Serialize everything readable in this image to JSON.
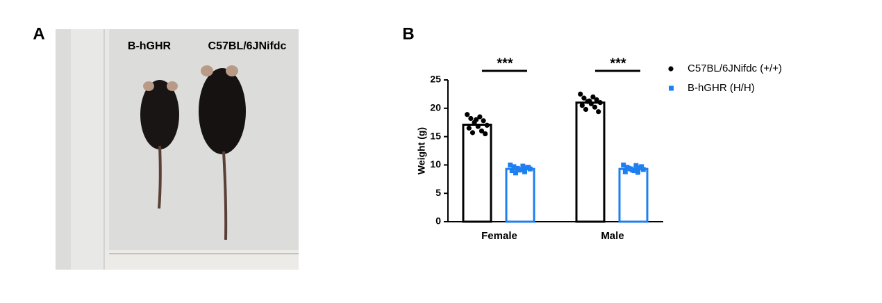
{
  "panel_labels": [
    "A",
    "B"
  ],
  "photo": {
    "labels": [
      "B-hGHR",
      "C57BL/6JNifdc"
    ]
  },
  "chart_data": {
    "type": "bar",
    "y_label": "Weight (g)",
    "categories": [
      "Female",
      "Male"
    ],
    "ylim": [
      0,
      25
    ],
    "yticks": [
      0,
      5,
      10,
      15,
      20,
      25
    ],
    "legend": "top-right",
    "series": [
      {
        "name": "C57BL/6JNifdc (+/+)",
        "color": "#000000",
        "marker": "circle",
        "values": [
          17.1,
          21.0
        ],
        "points": [
          [
            18.9,
            18.5,
            18.2,
            17.8,
            17.5,
            17.0,
            16.8,
            16.5,
            16.0,
            15.7,
            15.5,
            18.0
          ],
          [
            22.5,
            22.0,
            21.8,
            21.5,
            21.2,
            21.0,
            20.8,
            20.5,
            20.2,
            19.8,
            19.4,
            21.3
          ]
        ]
      },
      {
        "name": "B-hGHR (H/H)",
        "color": "#1e7ff0",
        "marker": "square",
        "values": [
          9.3,
          9.3
        ],
        "points": [
          [
            10.0,
            9.8,
            9.7,
            9.5,
            9.4,
            9.3,
            9.2,
            9.0,
            8.8,
            8.6,
            9.6,
            9.1
          ],
          [
            10.0,
            9.9,
            9.6,
            9.5,
            9.3,
            9.2,
            9.0,
            8.8,
            8.7,
            9.4,
            9.7,
            9.1
          ]
        ]
      }
    ],
    "annotations": [
      {
        "category": 0,
        "text": "***"
      },
      {
        "category": 1,
        "text": "***"
      }
    ]
  }
}
